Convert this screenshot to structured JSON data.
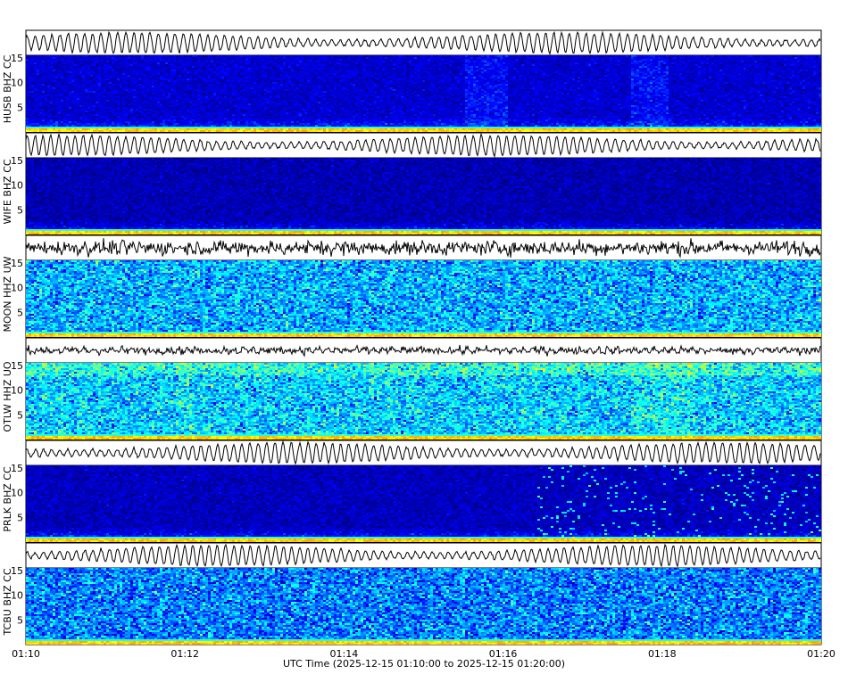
{
  "chart_data": {
    "type": "heatmap",
    "description_kind": "seismic waveform and spectrogram panels",
    "xlabel": "UTC Time (2025-12-15 01:10:00 to 2025-12-15 01:20:00)",
    "x_ticks": [
      "01:10",
      "01:12",
      "01:14",
      "01:16",
      "01:18",
      "01:20"
    ],
    "xlim": [
      "01:10:00",
      "01:20:00"
    ],
    "ylim": [
      0,
      15.5
    ],
    "y_ticks": [
      "5",
      "10",
      "15"
    ],
    "colormap": "jet",
    "panels": [
      {
        "label": "HUSB BHZ CC",
        "level": 0.08
      },
      {
        "label": "WIFE BHZ CC",
        "level": 0.05
      },
      {
        "label": "MOON HHZ UW",
        "level": 0.3
      },
      {
        "label": "OTLW HHZ UO",
        "level": 0.33
      },
      {
        "label": "PRLK BHZ CC",
        "level": 0.06
      },
      {
        "label": "TCBU BHZ CC",
        "level": 0.25
      }
    ]
  }
}
